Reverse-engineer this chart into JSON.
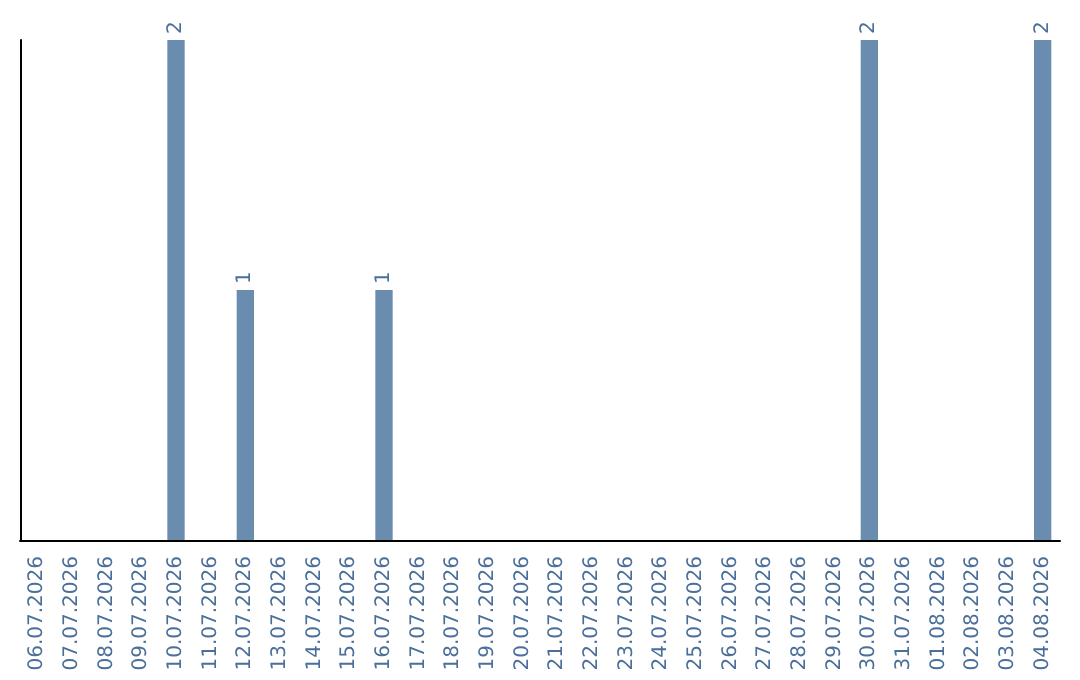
{
  "chart_data": {
    "type": "bar",
    "categories": [
      "06.07.2026",
      "07.07.2026",
      "08.07.2026",
      "09.07.2026",
      "10.07.2026",
      "11.07.2026",
      "12.07.2026",
      "13.07.2026",
      "14.07.2026",
      "15.07.2026",
      "16.07.2026",
      "17.07.2026",
      "18.07.2026",
      "19.07.2026",
      "20.07.2026",
      "21.07.2026",
      "22.07.2026",
      "23.07.2026",
      "24.07.2026",
      "25.07.2026",
      "26.07.2026",
      "27.07.2026",
      "28.07.2026",
      "29.07.2026",
      "30.07.2026",
      "31.07.2026",
      "01.08.2026",
      "02.08.2026",
      "03.08.2026",
      "04.08.2026"
    ],
    "values": [
      0,
      0,
      0,
      0,
      2,
      0,
      1,
      0,
      0,
      0,
      1,
      0,
      0,
      0,
      0,
      0,
      0,
      0,
      0,
      0,
      0,
      0,
      0,
      0,
      2,
      0,
      0,
      0,
      0,
      2
    ],
    "value_labels": [
      null,
      null,
      null,
      null,
      "2",
      null,
      "1",
      null,
      null,
      null,
      "1",
      null,
      null,
      null,
      null,
      null,
      null,
      null,
      null,
      null,
      null,
      null,
      null,
      null,
      "2",
      null,
      null,
      null,
      null,
      "2"
    ],
    "color": "#6a8caf",
    "ylim": [
      0,
      2
    ],
    "tick_labels": "x"
  }
}
